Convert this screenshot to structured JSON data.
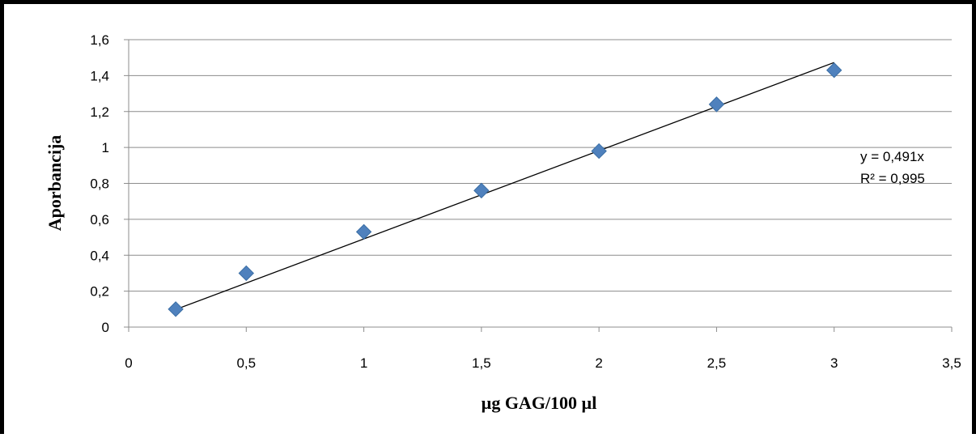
{
  "chart_data": {
    "type": "scatter",
    "title": "",
    "xlabel": "µg GAG/100 µl",
    "ylabel": "Aporbancija",
    "xlim": [
      0,
      3.5
    ],
    "ylim": [
      0,
      1.6
    ],
    "x_ticks": [
      "0",
      "0,5",
      "1",
      "1,5",
      "2",
      "2,5",
      "3",
      "3,5"
    ],
    "x_tick_values": [
      0,
      0.5,
      1,
      1.5,
      2,
      2.5,
      3,
      3.5
    ],
    "y_ticks": [
      "0",
      "0,2",
      "0,4",
      "0,6",
      "0,8",
      "1",
      "1,2",
      "1,4",
      "1,6"
    ],
    "y_tick_values": [
      0,
      0.2,
      0.4,
      0.6,
      0.8,
      1.0,
      1.2,
      1.4,
      1.6
    ],
    "grid": "horizontal",
    "series": [
      {
        "marker": "diamond",
        "color": "#4f81bd",
        "points": [
          {
            "x": 0.2,
            "y": 0.1
          },
          {
            "x": 0.5,
            "y": 0.3
          },
          {
            "x": 1.0,
            "y": 0.53
          },
          {
            "x": 1.5,
            "y": 0.76
          },
          {
            "x": 2.0,
            "y": 0.98
          },
          {
            "x": 2.5,
            "y": 1.24
          },
          {
            "x": 3.0,
            "y": 1.43
          }
        ]
      }
    ],
    "trendline": {
      "type": "linear",
      "slope": 0.491,
      "x_start": 0.2,
      "x_end": 3.0,
      "color": "#000000"
    },
    "annotations": {
      "equation": "y = 0,491x",
      "r_squared": "R² = 0,995"
    }
  }
}
